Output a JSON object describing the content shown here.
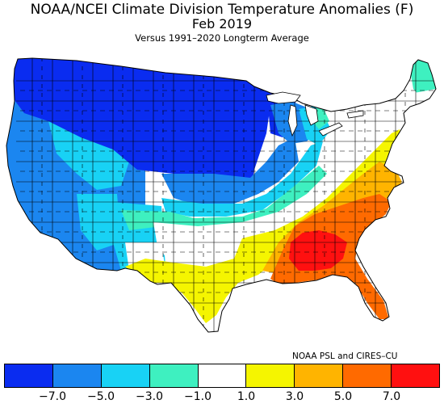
{
  "title": "NOAA/NCEI Climate Division Temperature Anomalies (F)",
  "subtitle": "Feb 2019",
  "versus": "Versus 1991–2020 Longterm Average",
  "credit": "NOAA PSL and CIRES–CU",
  "colors": {
    "c_lt_-7": "#0a2cf0",
    "c_-7_-5": "#1b86f0",
    "c_-5_-3": "#18d2f5",
    "c_-3_-1": "#3ef0c0",
    "c_-1_1": "#ffffff",
    "c_1_3": "#f5f500",
    "c_3_5": "#ffb400",
    "c_5_7": "#ff6a00",
    "c_gt_7": "#ff1010",
    "outline": "#000000"
  },
  "colorbar": {
    "bins": [
      {
        "range": "< -7.0",
        "color": "#0a2cf0"
      },
      {
        "range": "-7.0 to -5.0",
        "color": "#1b86f0"
      },
      {
        "range": "-5.0 to -3.0",
        "color": "#18d2f5"
      },
      {
        "range": "-3.0 to -1.0",
        "color": "#3ef0c0"
      },
      {
        "range": "-1.0 to 1.0",
        "color": "#ffffff"
      },
      {
        "range": "1.0 to 3.0",
        "color": "#f5f500"
      },
      {
        "range": "3.0 to 5.0",
        "color": "#ffb400"
      },
      {
        "range": "5.0 to 7.0",
        "color": "#ff6a00"
      },
      {
        "range": "> 7.0",
        "color": "#ff1010"
      }
    ],
    "tick_labels": [
      "−7.0",
      "−5.0",
      "−3.0",
      "−1.0",
      "1.0",
      "3.0",
      "5.0",
      "7.0"
    ]
  },
  "map_regions": [
    {
      "name": "pacific-northwest",
      "anomaly_bin": "-7 to -5"
    },
    {
      "name": "northern-rockies-plains",
      "anomaly_bin": "< -7"
    },
    {
      "name": "upper-midwest",
      "anomaly_bin": "< -7"
    },
    {
      "name": "great-basin",
      "anomaly_bin": "-5 to -3 / -7 to -5"
    },
    {
      "name": "southern-plains",
      "anomaly_bin": "-1 to 1"
    },
    {
      "name": "southeast",
      "anomaly_bin": "5 to 7"
    },
    {
      "name": "alabama-georgia-core",
      "anomaly_bin": "> 7"
    },
    {
      "name": "northeast",
      "anomaly_bin": "-1 to 1"
    }
  ]
}
